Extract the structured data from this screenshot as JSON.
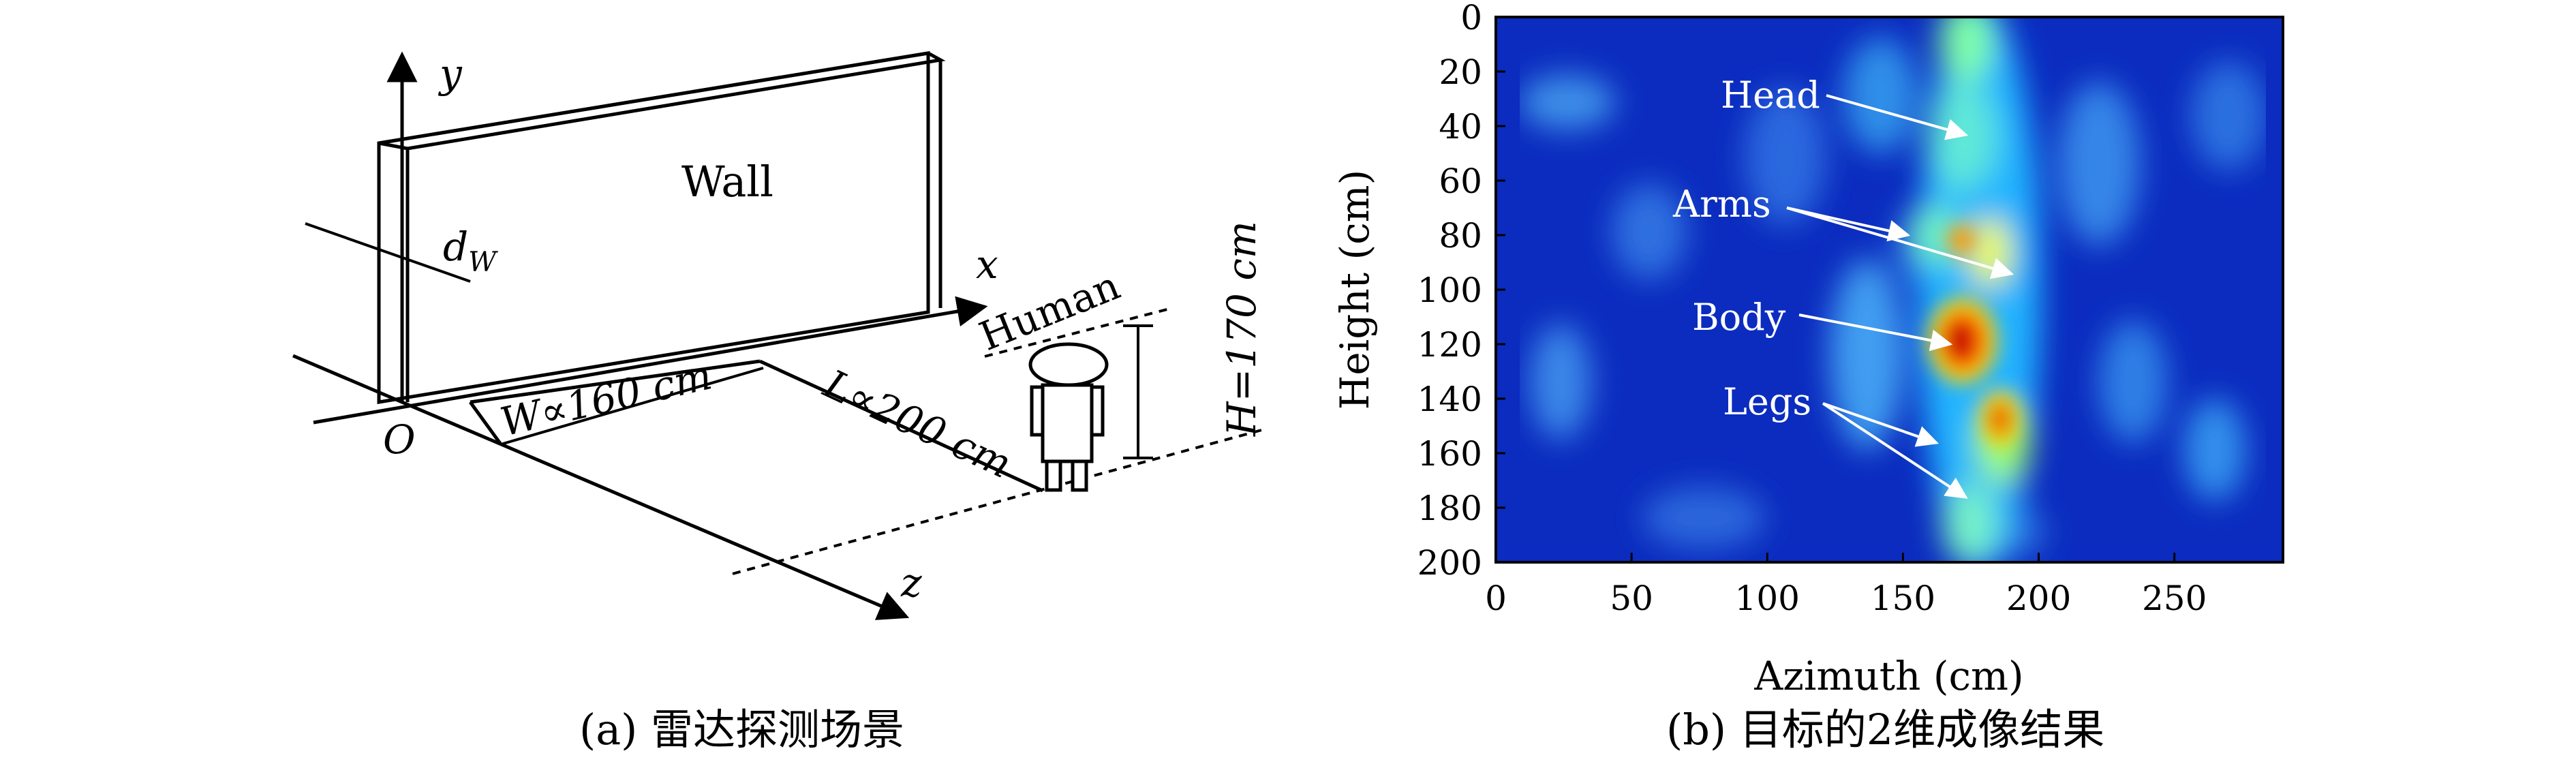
{
  "panel_a": {
    "caption": "(a) 雷达探测场景",
    "wall_label": "Wall",
    "axis_x": "x",
    "axis_y": "y",
    "axis_z": "z",
    "origin": "O",
    "dw_main": "d",
    "dw_sub": "W",
    "width_label": "W∝160 cm",
    "length_label": "L∝200 cm",
    "height_label": "H=170 cm",
    "human_label": "Human"
  },
  "panel_b": {
    "caption": "(b) 目标的2维成像结果",
    "xlabel": "Azimuth (cm)",
    "ylabel": "Height (cm)",
    "x_ticks": [
      "0",
      "50",
      "100",
      "150",
      "200",
      "250"
    ],
    "y_ticks": [
      "0",
      "20",
      "40",
      "60",
      "80",
      "100",
      "120",
      "140",
      "160",
      "180",
      "200"
    ],
    "annotations": [
      "Head",
      "Arms",
      "Body",
      "Legs"
    ]
  },
  "chart_data": {
    "type": "heatmap",
    "xlabel": "Azimuth (cm)",
    "ylabel": "Height (cm)",
    "xlim": [
      0,
      290
    ],
    "ylim": [
      200,
      0
    ],
    "x_ticks": [
      0,
      50,
      100,
      150,
      200,
      250
    ],
    "y_ticks": [
      0,
      20,
      40,
      60,
      80,
      100,
      120,
      140,
      160,
      180,
      200
    ],
    "colormap": "jet",
    "hotspots": [
      {
        "label": "Head",
        "x": 172,
        "y": 42
      },
      {
        "label": "Arms",
        "x": 165,
        "y": 78
      },
      {
        "label": "Arms",
        "x": 185,
        "y": 95
      },
      {
        "label": "Body",
        "x": 170,
        "y": 118
      },
      {
        "label": "Legs",
        "x": 178,
        "y": 150
      },
      {
        "label": "Legs",
        "x": 172,
        "y": 175
      }
    ],
    "colors": {
      "low": "#0a2fc4",
      "mid": "#20b8ff",
      "high_mid": "#f4ff2a",
      "high": "#e41000"
    }
  }
}
